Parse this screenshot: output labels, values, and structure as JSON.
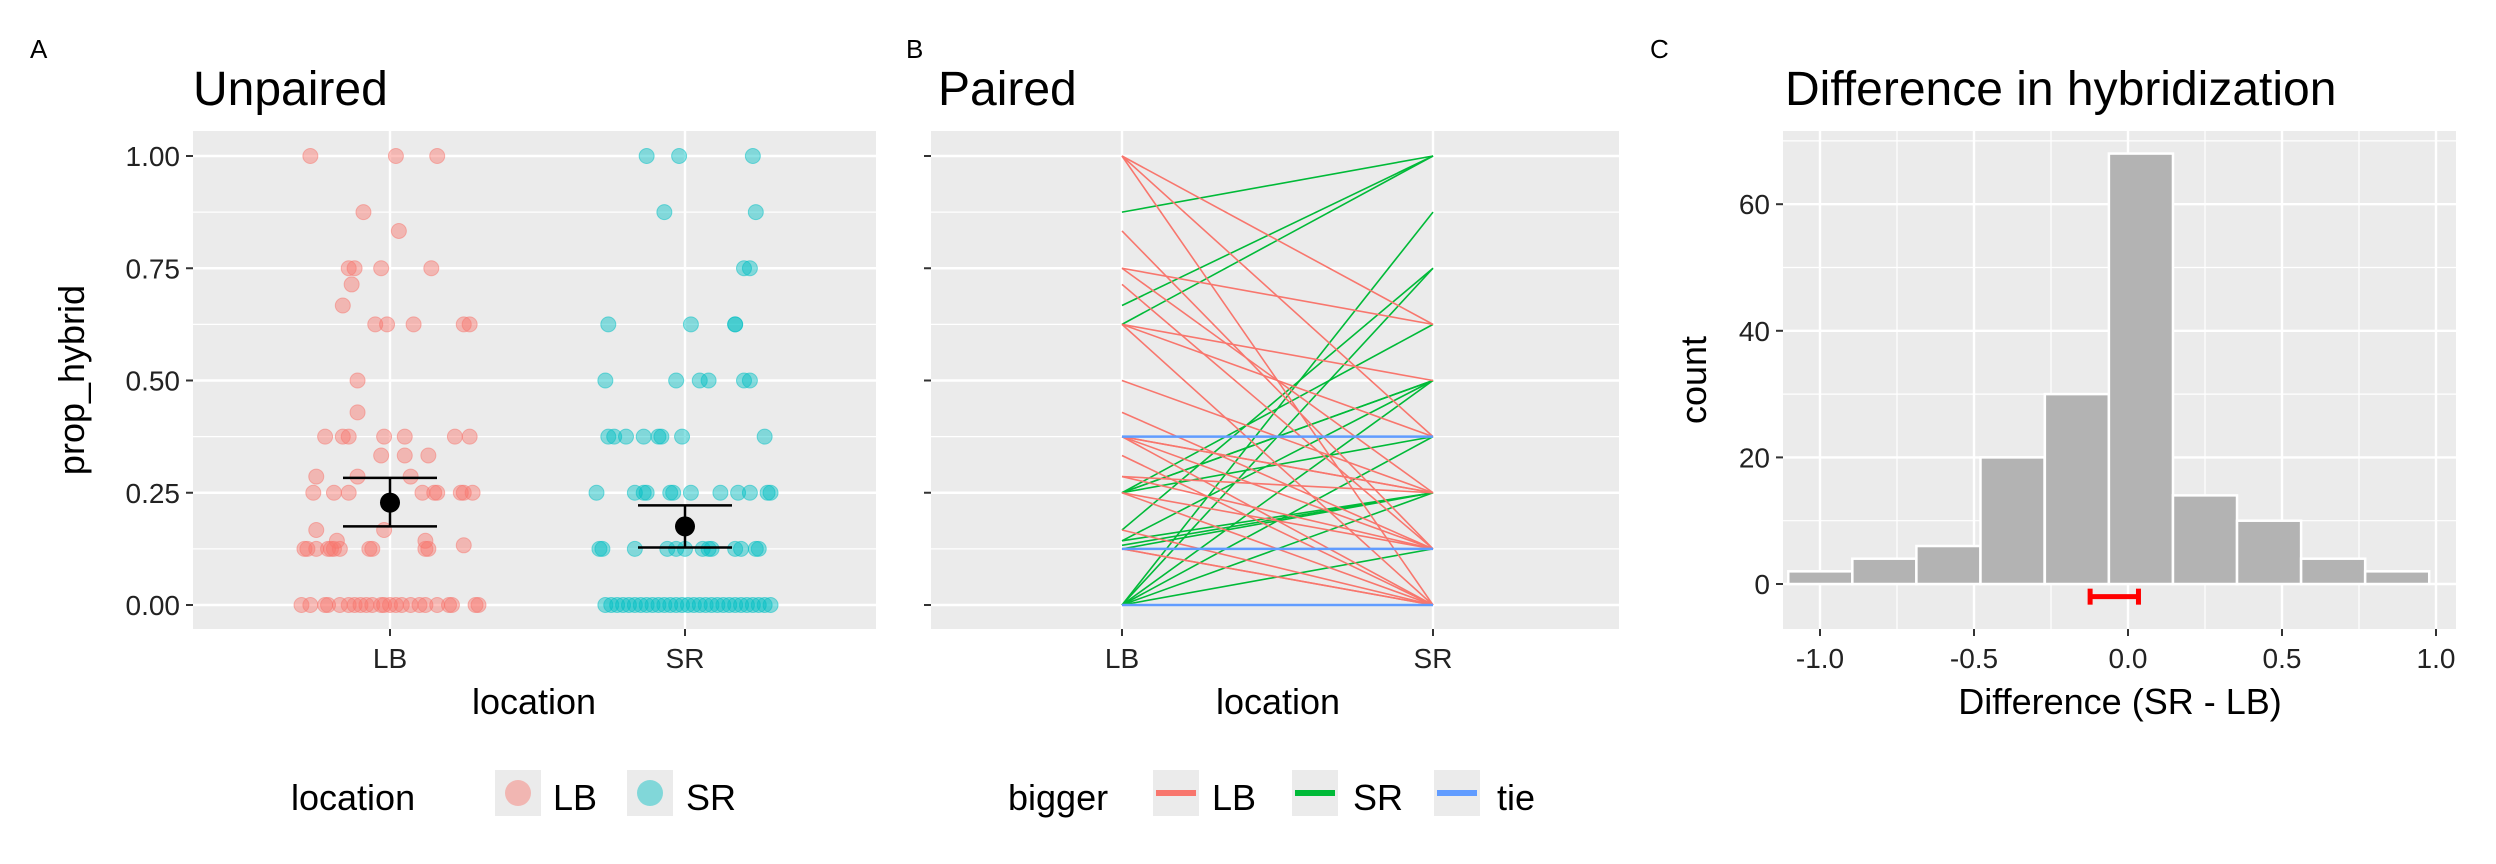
{
  "colors": {
    "LB": "#F8766D",
    "SR": "#00BFC4",
    "bigger_LB": "#F8766D",
    "bigger_SR": "#00BA38",
    "tie": "#619CFF",
    "panel": "#EBEBEB",
    "bar": "#B3B3B3",
    "ci": "#FF0000"
  },
  "chart_data": [
    {
      "tag": "A",
      "type": "scatter",
      "title": "Unpaired",
      "xlabel": "location",
      "ylabel": "prop_hybrid",
      "categories": [
        "LB",
        "SR"
      ],
      "yticks": [
        "0.00",
        "0.25",
        "0.50",
        "0.75",
        "1.00"
      ],
      "ylim": [
        -0.05,
        1.05
      ],
      "grid": true,
      "legend": {
        "title": "location",
        "entries": [
          "LB",
          "SR"
        ],
        "placement": "bottom"
      },
      "summary": [
        {
          "category": "LB",
          "mean": 0.228,
          "ci": [
            0.175,
            0.283
          ]
        },
        {
          "category": "SR",
          "mean": 0.175,
          "ci": [
            0.128,
            0.222
          ]
        }
      ],
      "points": {
        "LB": [
          [
            1,
            -0.27
          ],
          [
            1,
            0.02
          ],
          [
            1,
            0.16
          ],
          [
            0.875,
            -0.09
          ],
          [
            0.833,
            0.03
          ],
          [
            0.75,
            -0.14
          ],
          [
            0.75,
            -0.12
          ],
          [
            0.75,
            -0.03
          ],
          [
            0.75,
            0.14
          ],
          [
            0.714,
            -0.13
          ],
          [
            0.667,
            -0.16
          ],
          [
            0.625,
            -0.05
          ],
          [
            0.625,
            -0.01
          ],
          [
            0.625,
            0.08
          ],
          [
            0.625,
            0.25
          ],
          [
            0.625,
            0.27
          ],
          [
            0.5,
            -0.11
          ],
          [
            0.429,
            -0.11
          ],
          [
            0.375,
            -0.22
          ],
          [
            0.375,
            -0.16
          ],
          [
            0.375,
            -0.14
          ],
          [
            0.375,
            -0.02
          ],
          [
            0.375,
            0.05
          ],
          [
            0.375,
            0.22
          ],
          [
            0.375,
            0.27
          ],
          [
            0.333,
            -0.03
          ],
          [
            0.333,
            0.05
          ],
          [
            0.333,
            0.13
          ],
          [
            0.286,
            -0.25
          ],
          [
            0.286,
            -0.11
          ],
          [
            0.286,
            0.07
          ],
          [
            0.25,
            -0.26
          ],
          [
            0.25,
            -0.19
          ],
          [
            0.25,
            -0.14
          ],
          [
            0.25,
            0.11
          ],
          [
            0.25,
            0.15
          ],
          [
            0.25,
            0.16
          ],
          [
            0.25,
            0.24
          ],
          [
            0.25,
            0.25
          ],
          [
            0.25,
            0.28
          ],
          [
            0.167,
            -0.02
          ],
          [
            0.167,
            -0.25
          ],
          [
            0.143,
            -0.18
          ],
          [
            0.143,
            0.12
          ],
          [
            0.133,
            0.25
          ],
          [
            0.125,
            -0.29
          ],
          [
            0.125,
            -0.28
          ],
          [
            0.125,
            -0.25
          ],
          [
            0.125,
            -0.21
          ],
          [
            0.125,
            -0.2
          ],
          [
            0.125,
            -0.19
          ],
          [
            0.125,
            -0.17
          ],
          [
            0.125,
            -0.07
          ],
          [
            0.125,
            -0.06
          ],
          [
            0.125,
            0.12
          ],
          [
            0.125,
            0.13
          ],
          [
            0,
            -0.3
          ],
          [
            0,
            -0.27
          ],
          [
            0,
            -0.22
          ],
          [
            0,
            -0.21
          ],
          [
            0,
            -0.17
          ],
          [
            0,
            -0.14
          ],
          [
            0,
            -0.12
          ],
          [
            0,
            -0.1
          ],
          [
            0,
            -0.08
          ],
          [
            0,
            -0.06
          ],
          [
            0,
            -0.03
          ],
          [
            0,
            -0.02
          ],
          [
            0,
            0
          ],
          [
            0,
            0.02
          ],
          [
            0,
            0.04
          ],
          [
            0,
            0.07
          ],
          [
            0,
            0.1
          ],
          [
            0,
            0.12
          ],
          [
            0,
            0.16
          ],
          [
            0,
            0.2
          ],
          [
            0,
            0.21
          ],
          [
            0,
            0.29
          ],
          [
            0,
            0.3
          ]
        ],
        "SR": [
          [
            1,
            -0.13
          ],
          [
            1,
            -0.02
          ],
          [
            1,
            0.23
          ],
          [
            0.875,
            -0.07
          ],
          [
            0.875,
            0.24
          ],
          [
            0.75,
            0.2
          ],
          [
            0.75,
            0.22
          ],
          [
            0.625,
            -0.26
          ],
          [
            0.625,
            0.02
          ],
          [
            0.625,
            0.17
          ],
          [
            0.625,
            0.17
          ],
          [
            0.5,
            -0.27
          ],
          [
            0.5,
            -0.03
          ],
          [
            0.5,
            0.05
          ],
          [
            0.5,
            0.08
          ],
          [
            0.5,
            0.2
          ],
          [
            0.5,
            0.22
          ],
          [
            0.375,
            -0.26
          ],
          [
            0.375,
            -0.24
          ],
          [
            0.375,
            -0.2
          ],
          [
            0.375,
            -0.14
          ],
          [
            0.375,
            -0.09
          ],
          [
            0.375,
            -0.08
          ],
          [
            0.375,
            -0.01
          ],
          [
            0.375,
            0.27
          ],
          [
            0.25,
            -0.3
          ],
          [
            0.25,
            -0.17
          ],
          [
            0.25,
            -0.14
          ],
          [
            0.25,
            -0.13
          ],
          [
            0.25,
            -0.05
          ],
          [
            0.25,
            -0.04
          ],
          [
            0.25,
            0.02
          ],
          [
            0.25,
            0.12
          ],
          [
            0.25,
            0.18
          ],
          [
            0.25,
            0.22
          ],
          [
            0.25,
            0.28
          ],
          [
            0.25,
            0.29
          ],
          [
            0.125,
            -0.29
          ],
          [
            0.125,
            -0.28
          ],
          [
            0.125,
            -0.17
          ],
          [
            0.125,
            -0.06
          ],
          [
            0.125,
            -0.03
          ],
          [
            0.125,
            0
          ],
          [
            0.125,
            0.06
          ],
          [
            0.125,
            0.08
          ],
          [
            0.125,
            0.09
          ],
          [
            0.125,
            0.17
          ],
          [
            0.125,
            0.19
          ],
          [
            0.125,
            0.24
          ],
          [
            0.125,
            0.25
          ],
          [
            0,
            -0.27
          ],
          [
            0,
            -0.25
          ],
          [
            0,
            -0.23
          ],
          [
            0,
            -0.21
          ],
          [
            0,
            -0.19
          ],
          [
            0,
            -0.17
          ],
          [
            0,
            -0.15
          ],
          [
            0,
            -0.13
          ],
          [
            0,
            -0.11
          ],
          [
            0,
            -0.09
          ],
          [
            0,
            -0.07
          ],
          [
            0,
            -0.05
          ],
          [
            0,
            -0.03
          ],
          [
            0,
            -0.01
          ],
          [
            0,
            0.01
          ],
          [
            0,
            0.03
          ],
          [
            0,
            0.05
          ],
          [
            0,
            0.07
          ],
          [
            0,
            0.09
          ],
          [
            0,
            0.11
          ],
          [
            0,
            0.13
          ],
          [
            0,
            0.15
          ],
          [
            0,
            0.17
          ],
          [
            0,
            0.19
          ],
          [
            0,
            0.21
          ],
          [
            0,
            0.23
          ],
          [
            0,
            0.25
          ],
          [
            0,
            0.27
          ],
          [
            0,
            0.29
          ]
        ]
      }
    },
    {
      "tag": "B",
      "type": "line",
      "title": "Paired",
      "xlabel": "location",
      "categories": [
        "LB",
        "SR"
      ],
      "ylim": [
        -0.05,
        1.05
      ],
      "grid": true,
      "legend": {
        "title": "bigger",
        "entries": [
          "LB",
          "SR",
          "tie"
        ],
        "placement": "bottom"
      },
      "pairs": [
        [
          0.875,
          1,
          "SR"
        ],
        [
          0.667,
          1,
          "SR"
        ],
        [
          0.625,
          1,
          "SR"
        ],
        [
          0,
          0.875,
          "SR"
        ],
        [
          0.167,
          0.75,
          "SR"
        ],
        [
          0,
          0.75,
          "SR"
        ],
        [
          0.25,
          0.625,
          "SR"
        ],
        [
          0.25,
          0.5,
          "SR"
        ],
        [
          0.25,
          0.375,
          "SR"
        ],
        [
          0.143,
          0.5,
          "SR"
        ],
        [
          0.125,
          0.25,
          "SR"
        ],
        [
          0,
          0.5,
          "SR"
        ],
        [
          0,
          0.375,
          "SR"
        ],
        [
          0,
          0.25,
          "SR"
        ],
        [
          0.133,
          0.25,
          "SR"
        ],
        [
          0,
          0.125,
          "SR"
        ],
        [
          0.25,
          0.5,
          "SR"
        ],
        [
          0.143,
          0.25,
          "SR"
        ],
        [
          1,
          0.625,
          "LB"
        ],
        [
          1,
          0.375,
          "LB"
        ],
        [
          1,
          0,
          "LB"
        ],
        [
          0.833,
          0.125,
          "LB"
        ],
        [
          0.75,
          0.625,
          "LB"
        ],
        [
          0.75,
          0.25,
          "LB"
        ],
        [
          0.714,
          0.125,
          "LB"
        ],
        [
          0.625,
          0.375,
          "LB"
        ],
        [
          0.625,
          0.5,
          "LB"
        ],
        [
          0.625,
          0,
          "LB"
        ],
        [
          0.5,
          0.25,
          "LB"
        ],
        [
          0.429,
          0.125,
          "LB"
        ],
        [
          0.375,
          0.25,
          "LB"
        ],
        [
          0.375,
          0.125,
          "LB"
        ],
        [
          0.375,
          0,
          "LB"
        ],
        [
          0.333,
          0,
          "LB"
        ],
        [
          0.286,
          0.25,
          "LB"
        ],
        [
          0.25,
          0.125,
          "LB"
        ],
        [
          0.25,
          0,
          "LB"
        ],
        [
          0.125,
          0,
          "LB"
        ],
        [
          0.167,
          0,
          "LB"
        ],
        [
          0.286,
          0.125,
          "LB"
        ],
        [
          0.375,
          0.25,
          "LB"
        ],
        [
          0.125,
          0,
          "LB"
        ],
        [
          0.375,
          0.375,
          "tie"
        ],
        [
          0.125,
          0.125,
          "tie"
        ],
        [
          0,
          0,
          "tie"
        ]
      ]
    },
    {
      "tag": "C",
      "type": "bar",
      "title": "Difference in hybridization",
      "xlabel": "Difference (SR - LB)",
      "ylabel": "count",
      "xticks": [
        "-1.0",
        "-0.5",
        "0.0",
        "0.5",
        "1.0"
      ],
      "yticks": [
        "0",
        "20",
        "40",
        "60"
      ],
      "xlim": [
        -1.12,
        1.07
      ],
      "ylim": [
        -7,
        71.5
      ],
      "grid": true,
      "bin_width": 0.208,
      "bin_centers": [
        -0.999,
        -0.791,
        -0.583,
        -0.375,
        -0.166,
        0.042,
        0.25,
        0.458,
        0.666,
        0.874
      ],
      "counts": [
        2,
        4,
        6,
        20,
        30,
        68,
        14,
        10,
        4,
        2
      ],
      "ci": {
        "low": -0.123,
        "high": 0.034,
        "y": -2
      }
    }
  ]
}
